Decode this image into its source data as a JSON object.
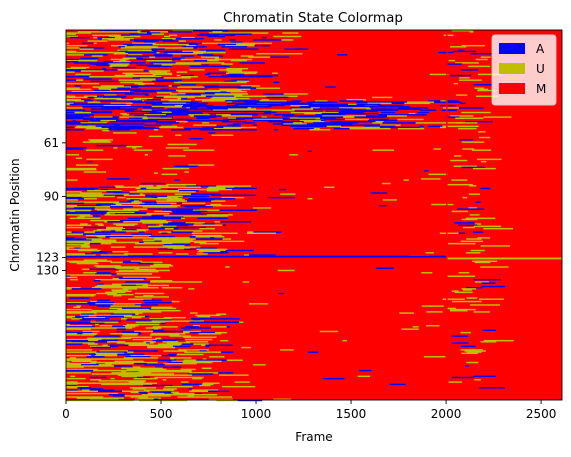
{
  "chart_data": {
    "type": "heatmap",
    "title": "Chromatin State Colormap",
    "xlabel": "Frame",
    "ylabel": "Chromatin Position",
    "xlim": [
      0,
      2610
    ],
    "ylim": [
      0,
      200
    ],
    "y_inverted": true,
    "xticks": [
      0,
      500,
      1000,
      1500,
      2000,
      2500
    ],
    "xtick_labels": [
      "0",
      "500",
      "1000",
      "1500",
      "2000",
      "2500"
    ],
    "yticks": [
      61,
      90,
      123,
      130
    ],
    "ytick_labels": [
      "61",
      "90",
      "123",
      "130"
    ],
    "grid": false,
    "legend_position": "top-right",
    "states": [
      {
        "name": "A",
        "color": "#0000ff"
      },
      {
        "name": "U",
        "color": "#bfbf00"
      },
      {
        "name": "M",
        "color": "#ff0000"
      }
    ],
    "background_state": "M",
    "vertical_discontinuity_frame": 2000,
    "segments": [
      {
        "pos_from": 0,
        "pos_to": 38,
        "frame_to": 1050,
        "mix": {
          "A": 0.22,
          "U": 0.3,
          "M": 0.48
        }
      },
      {
        "pos_from": 38,
        "pos_to": 54,
        "frame_to": 1950,
        "mix": {
          "A": 0.45,
          "U": 0.17,
          "M": 0.38
        }
      },
      {
        "pos_from": 54,
        "pos_to": 84,
        "frame_to": 600,
        "mix": {
          "A": 0.02,
          "U": 0.12,
          "M": 0.86
        }
      },
      {
        "pos_from": 84,
        "pos_to": 122,
        "frame_to": 900,
        "mix": {
          "A": 0.18,
          "U": 0.34,
          "M": 0.48
        }
      },
      {
        "pos_from": 124,
        "pos_to": 152,
        "frame_to": 500,
        "mix": {
          "A": 0.08,
          "U": 0.3,
          "M": 0.62
        }
      },
      {
        "pos_from": 152,
        "pos_to": 200,
        "frame_to": 800,
        "mix": {
          "A": 0.16,
          "U": 0.36,
          "M": 0.48
        }
      }
    ],
    "annotated_rows": [
      {
        "position": 122,
        "state": "A",
        "frame_from": 0,
        "frame_to": 2000
      },
      {
        "position": 123,
        "state": "U",
        "frame_from": 2000,
        "frame_to": 2610
      }
    ],
    "legend_entries": [
      "A",
      "U",
      "M"
    ]
  }
}
